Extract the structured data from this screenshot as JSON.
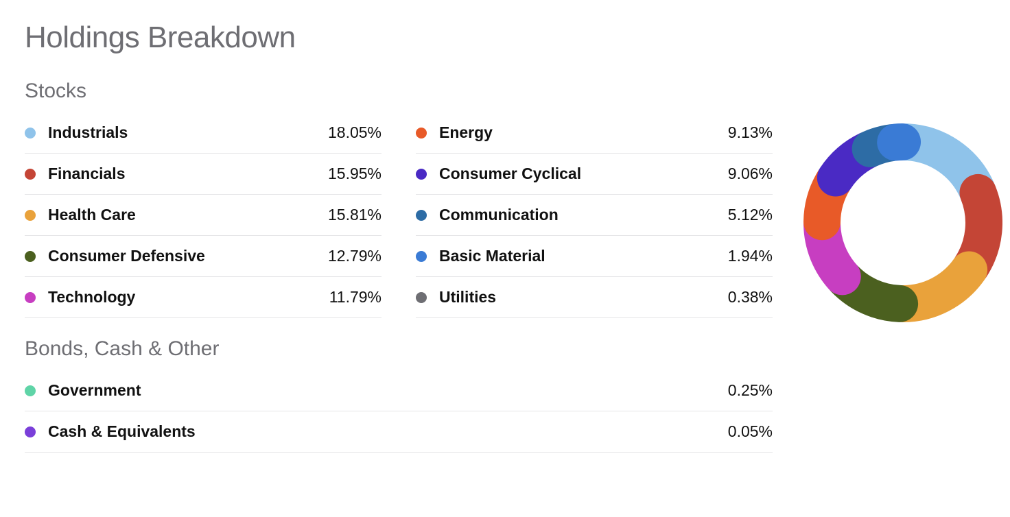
{
  "title": "Holdings Breakdown",
  "stocks": {
    "title": "Stocks",
    "col1": [
      {
        "label": "Industrials",
        "value": "18.05%",
        "color": "#8fc3ea",
        "pct": 18.05
      },
      {
        "label": "Financials",
        "value": "15.95%",
        "color": "#c44536",
        "pct": 15.95
      },
      {
        "label": "Health Care",
        "value": "15.81%",
        "color": "#e9a23b",
        "pct": 15.81
      },
      {
        "label": "Consumer Defensive",
        "value": "12.79%",
        "color": "#4b601f",
        "pct": 12.79
      },
      {
        "label": "Technology",
        "value": "11.79%",
        "color": "#c73ec1",
        "pct": 11.79
      }
    ],
    "col2": [
      {
        "label": "Energy",
        "value": "9.13%",
        "color": "#e85a28",
        "pct": 9.13
      },
      {
        "label": "Consumer Cyclical",
        "value": "9.06%",
        "color": "#4a2ac4",
        "pct": 9.06
      },
      {
        "label": "Communication",
        "value": "5.12%",
        "color": "#2d6ca5",
        "pct": 5.12
      },
      {
        "label": "Basic Material",
        "value": "1.94%",
        "color": "#3a7bd5",
        "pct": 1.94
      },
      {
        "label": "Utilities",
        "value": "0.38%",
        "color": "#6e6e73",
        "pct": 0.38
      }
    ]
  },
  "bonds": {
    "title": "Bonds, Cash & Other",
    "rows": [
      {
        "label": "Government",
        "value": "0.25%",
        "color": "#5fd4a7"
      },
      {
        "label": "Cash & Equivalents",
        "value": "0.05%",
        "color": "#7a3fd9"
      }
    ]
  },
  "donut": {
    "size": 290,
    "thickness": 54,
    "gap_deg": 2.2,
    "start_angle_deg": 2,
    "background": "#ffffff",
    "segments": [
      {
        "color": "#8fc3ea",
        "pct": 18.05
      },
      {
        "color": "#c44536",
        "pct": 15.95
      },
      {
        "color": "#e9a23b",
        "pct": 15.81
      },
      {
        "color": "#4b601f",
        "pct": 12.79
      },
      {
        "color": "#c73ec1",
        "pct": 11.79
      },
      {
        "color": "#e85a28",
        "pct": 9.13
      },
      {
        "color": "#4a2ac4",
        "pct": 9.06
      },
      {
        "color": "#2d6ca5",
        "pct": 5.12
      },
      {
        "color": "#3a7bd5",
        "pct": 1.94
      },
      {
        "color": "#6e6e73",
        "pct": 0.38
      }
    ]
  }
}
